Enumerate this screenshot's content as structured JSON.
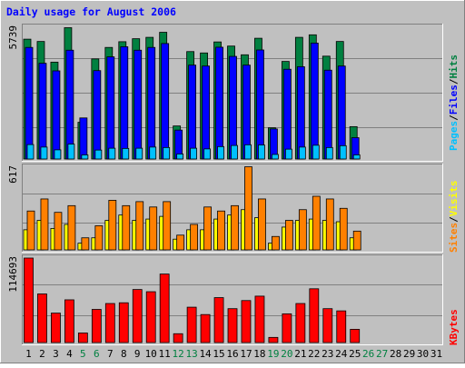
{
  "chart_data": [
    {
      "type": "bar",
      "title": "Daily usage for August 2006",
      "categories": [
        "1",
        "2",
        "3",
        "4",
        "5",
        "6",
        "7",
        "8",
        "9",
        "10",
        "11",
        "12",
        "13",
        "14",
        "15",
        "16",
        "17",
        "18",
        "19",
        "20",
        "21",
        "22",
        "23",
        "24",
        "25",
        "26",
        "27",
        "28",
        "29",
        "30",
        "31"
      ],
      "weekend_days": [
        "5",
        "6",
        "12",
        "13",
        "19",
        "20",
        "26",
        "27"
      ],
      "ymax_label": "5739",
      "ylim": [
        0,
        5739
      ],
      "grid": true,
      "series": [
        {
          "name": "Hits",
          "values": [
            5220,
            5120,
            4220,
            5720,
            1600,
            4360,
            4860,
            5110,
            5240,
            5300,
            5520,
            1440,
            4680,
            4620,
            5100,
            4920,
            4540,
            5260,
            1360,
            4250,
            5300,
            5410,
            4480,
            5120,
            1410,
            0,
            0,
            0,
            0,
            0,
            0
          ]
        },
        {
          "name": "Files",
          "values": [
            4860,
            4170,
            3840,
            4740,
            1790,
            3850,
            4450,
            4890,
            4740,
            4860,
            5030,
            1260,
            4090,
            4050,
            4870,
            4470,
            4090,
            4750,
            1310,
            3910,
            4020,
            5050,
            3870,
            4050,
            930,
            0,
            0,
            0,
            0,
            0,
            0
          ]
        },
        {
          "name": "Pages",
          "values": [
            630,
            520,
            400,
            650,
            180,
            390,
            470,
            460,
            470,
            520,
            500,
            220,
            470,
            440,
            540,
            590,
            620,
            610,
            200,
            430,
            520,
            600,
            500,
            580,
            180,
            0,
            0,
            0,
            0,
            0,
            0
          ]
        }
      ],
      "legend": [
        "Pages",
        "Files",
        "Hits"
      ]
    },
    {
      "type": "bar",
      "categories": [
        "1",
        "2",
        "3",
        "4",
        "5",
        "6",
        "7",
        "8",
        "9",
        "10",
        "11",
        "12",
        "13",
        "14",
        "15",
        "16",
        "17",
        "18",
        "19",
        "20",
        "21",
        "22",
        "23",
        "24",
        "25",
        "26",
        "27",
        "28",
        "29",
        "30",
        "31"
      ],
      "ymax_label": "617",
      "ylim": [
        0,
        617
      ],
      "grid": true,
      "series": [
        {
          "name": "Visits",
          "values": [
            150,
            220,
            160,
            190,
            50,
            90,
            220,
            260,
            220,
            230,
            250,
            80,
            150,
            150,
            230,
            260,
            300,
            240,
            50,
            170,
            220,
            230,
            220,
            210,
            90,
            0,
            0,
            0,
            0,
            0,
            0
          ]
        },
        {
          "name": "Sites",
          "values": [
            290,
            380,
            280,
            330,
            90,
            180,
            370,
            330,
            360,
            320,
            360,
            110,
            190,
            320,
            290,
            330,
            620,
            380,
            100,
            220,
            300,
            400,
            380,
            310,
            140,
            0,
            0,
            0,
            0,
            0,
            0
          ]
        }
      ],
      "legend": [
        "Sites",
        "Visits"
      ]
    },
    {
      "type": "bar",
      "categories": [
        "1",
        "2",
        "3",
        "4",
        "5",
        "6",
        "7",
        "8",
        "9",
        "10",
        "11",
        "12",
        "13",
        "14",
        "15",
        "16",
        "17",
        "18",
        "19",
        "20",
        "21",
        "22",
        "23",
        "24",
        "25",
        "26",
        "27",
        "28",
        "29",
        "30",
        "31"
      ],
      "ymax_label": "114693",
      "ylim": [
        0,
        114693
      ],
      "grid": true,
      "series": [
        {
          "name": "KBytes",
          "values": [
            114693,
            66000,
            40000,
            58000,
            13000,
            45000,
            53000,
            54000,
            72000,
            69000,
            93000,
            12000,
            48000,
            38000,
            61000,
            46000,
            57000,
            63000,
            7000,
            39000,
            53000,
            73000,
            46000,
            43000,
            18000,
            0,
            0,
            0,
            0,
            0,
            0
          ]
        }
      ],
      "legend": [
        "KBytes"
      ]
    }
  ],
  "colors": {
    "background": "#c0c0c0",
    "title": "#0000ff",
    "hits": "#008040",
    "files": "#0000ff",
    "pages": "#00c0ff",
    "visits": "#ffff00",
    "sites": "#ff8000",
    "kbytes": "#ff0000",
    "weekend_label": "#008040",
    "weekday_label": "#000000",
    "legend_separator": "#000000"
  }
}
